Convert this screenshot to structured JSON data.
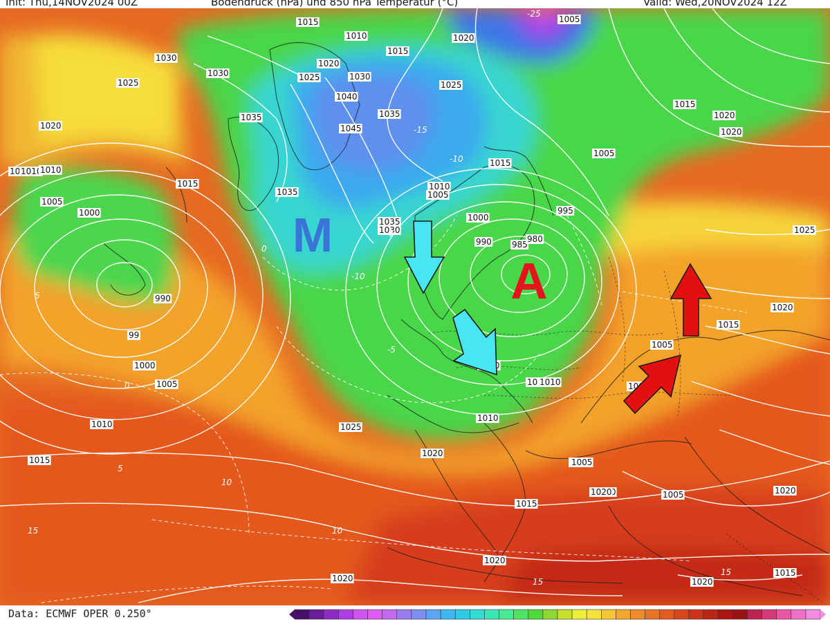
{
  "header": {
    "init": "Init: Thu,14NOV2024 00Z",
    "title": "Bodendruck (hPa) und 850 hPa Temperatur (°C)",
    "valid": "Valid: Wed,20NOV2024 12Z"
  },
  "map": {
    "symbols": {
      "low_pressure": "M",
      "high_pressure": "A"
    },
    "pressure_labels": [
      "1005",
      "1015",
      "1010",
      "1010",
      "1020",
      "1015",
      "1030",
      "1020",
      "1030",
      "1025",
      "1030",
      "1025",
      "1025",
      "1040",
      "1035",
      "1035",
      "1045",
      "1020",
      "1010",
      "1015",
      "1035",
      "1005",
      "1010",
      "1015",
      "1000",
      "1005",
      "1000",
      "990",
      "985",
      "980",
      "995",
      "1005",
      "1005",
      "1035",
      "1030",
      "990",
      "99",
      "1000",
      "1005",
      "1000",
      "1010",
      "1010",
      "1015",
      "1025",
      "1020",
      "1005",
      "1005",
      "1000",
      "1000",
      "1010",
      "1015",
      "1005",
      "1020",
      "1020",
      "1015",
      "1025",
      "1015",
      "1020",
      "1020",
      "1020",
      "1015",
      "1010",
      "1005",
      "1020",
      "1020",
      "1020",
      "1010"
    ],
    "temperature_labels": [
      "-25",
      "-15",
      "-10",
      "-5",
      "0",
      "5",
      "10",
      "15",
      "-10",
      "-5",
      "0",
      "5",
      "10",
      "15",
      "15"
    ],
    "arrows": [
      {
        "name": "cold-air-arrow-north",
        "color": "#46e6f0"
      },
      {
        "name": "cold-air-arrow-south",
        "color": "#46e6f0"
      },
      {
        "name": "warm-air-arrow-southwest",
        "color": "#e81010"
      },
      {
        "name": "warm-air-arrow-north",
        "color": "#e81010"
      }
    ]
  },
  "footer": {
    "source": "Data: ECMWF OPER 0.250°",
    "scale_colors": [
      "#4a0f6b",
      "#6a1c99",
      "#8d2bc2",
      "#b03ce3",
      "#cf55f2",
      "#e05cf5",
      "#c46af0",
      "#9b7cf0",
      "#7d8ff2",
      "#5da4f7",
      "#3fb8f2",
      "#2ecbe6",
      "#31dcd0",
      "#3ce8b2",
      "#46ec8f",
      "#4fe364",
      "#4fd93a",
      "#8ed832",
      "#c7e02b",
      "#edf03a",
      "#f6e23a",
      "#f6c634",
      "#f3a82d",
      "#f08b27",
      "#e87322",
      "#e25c1f",
      "#d8481c",
      "#cc3318",
      "#bd2416",
      "#aa1713",
      "#981413",
      "#bf224e",
      "#d9387a",
      "#ea55a6",
      "#f070c7",
      "#f38be0"
    ]
  }
}
